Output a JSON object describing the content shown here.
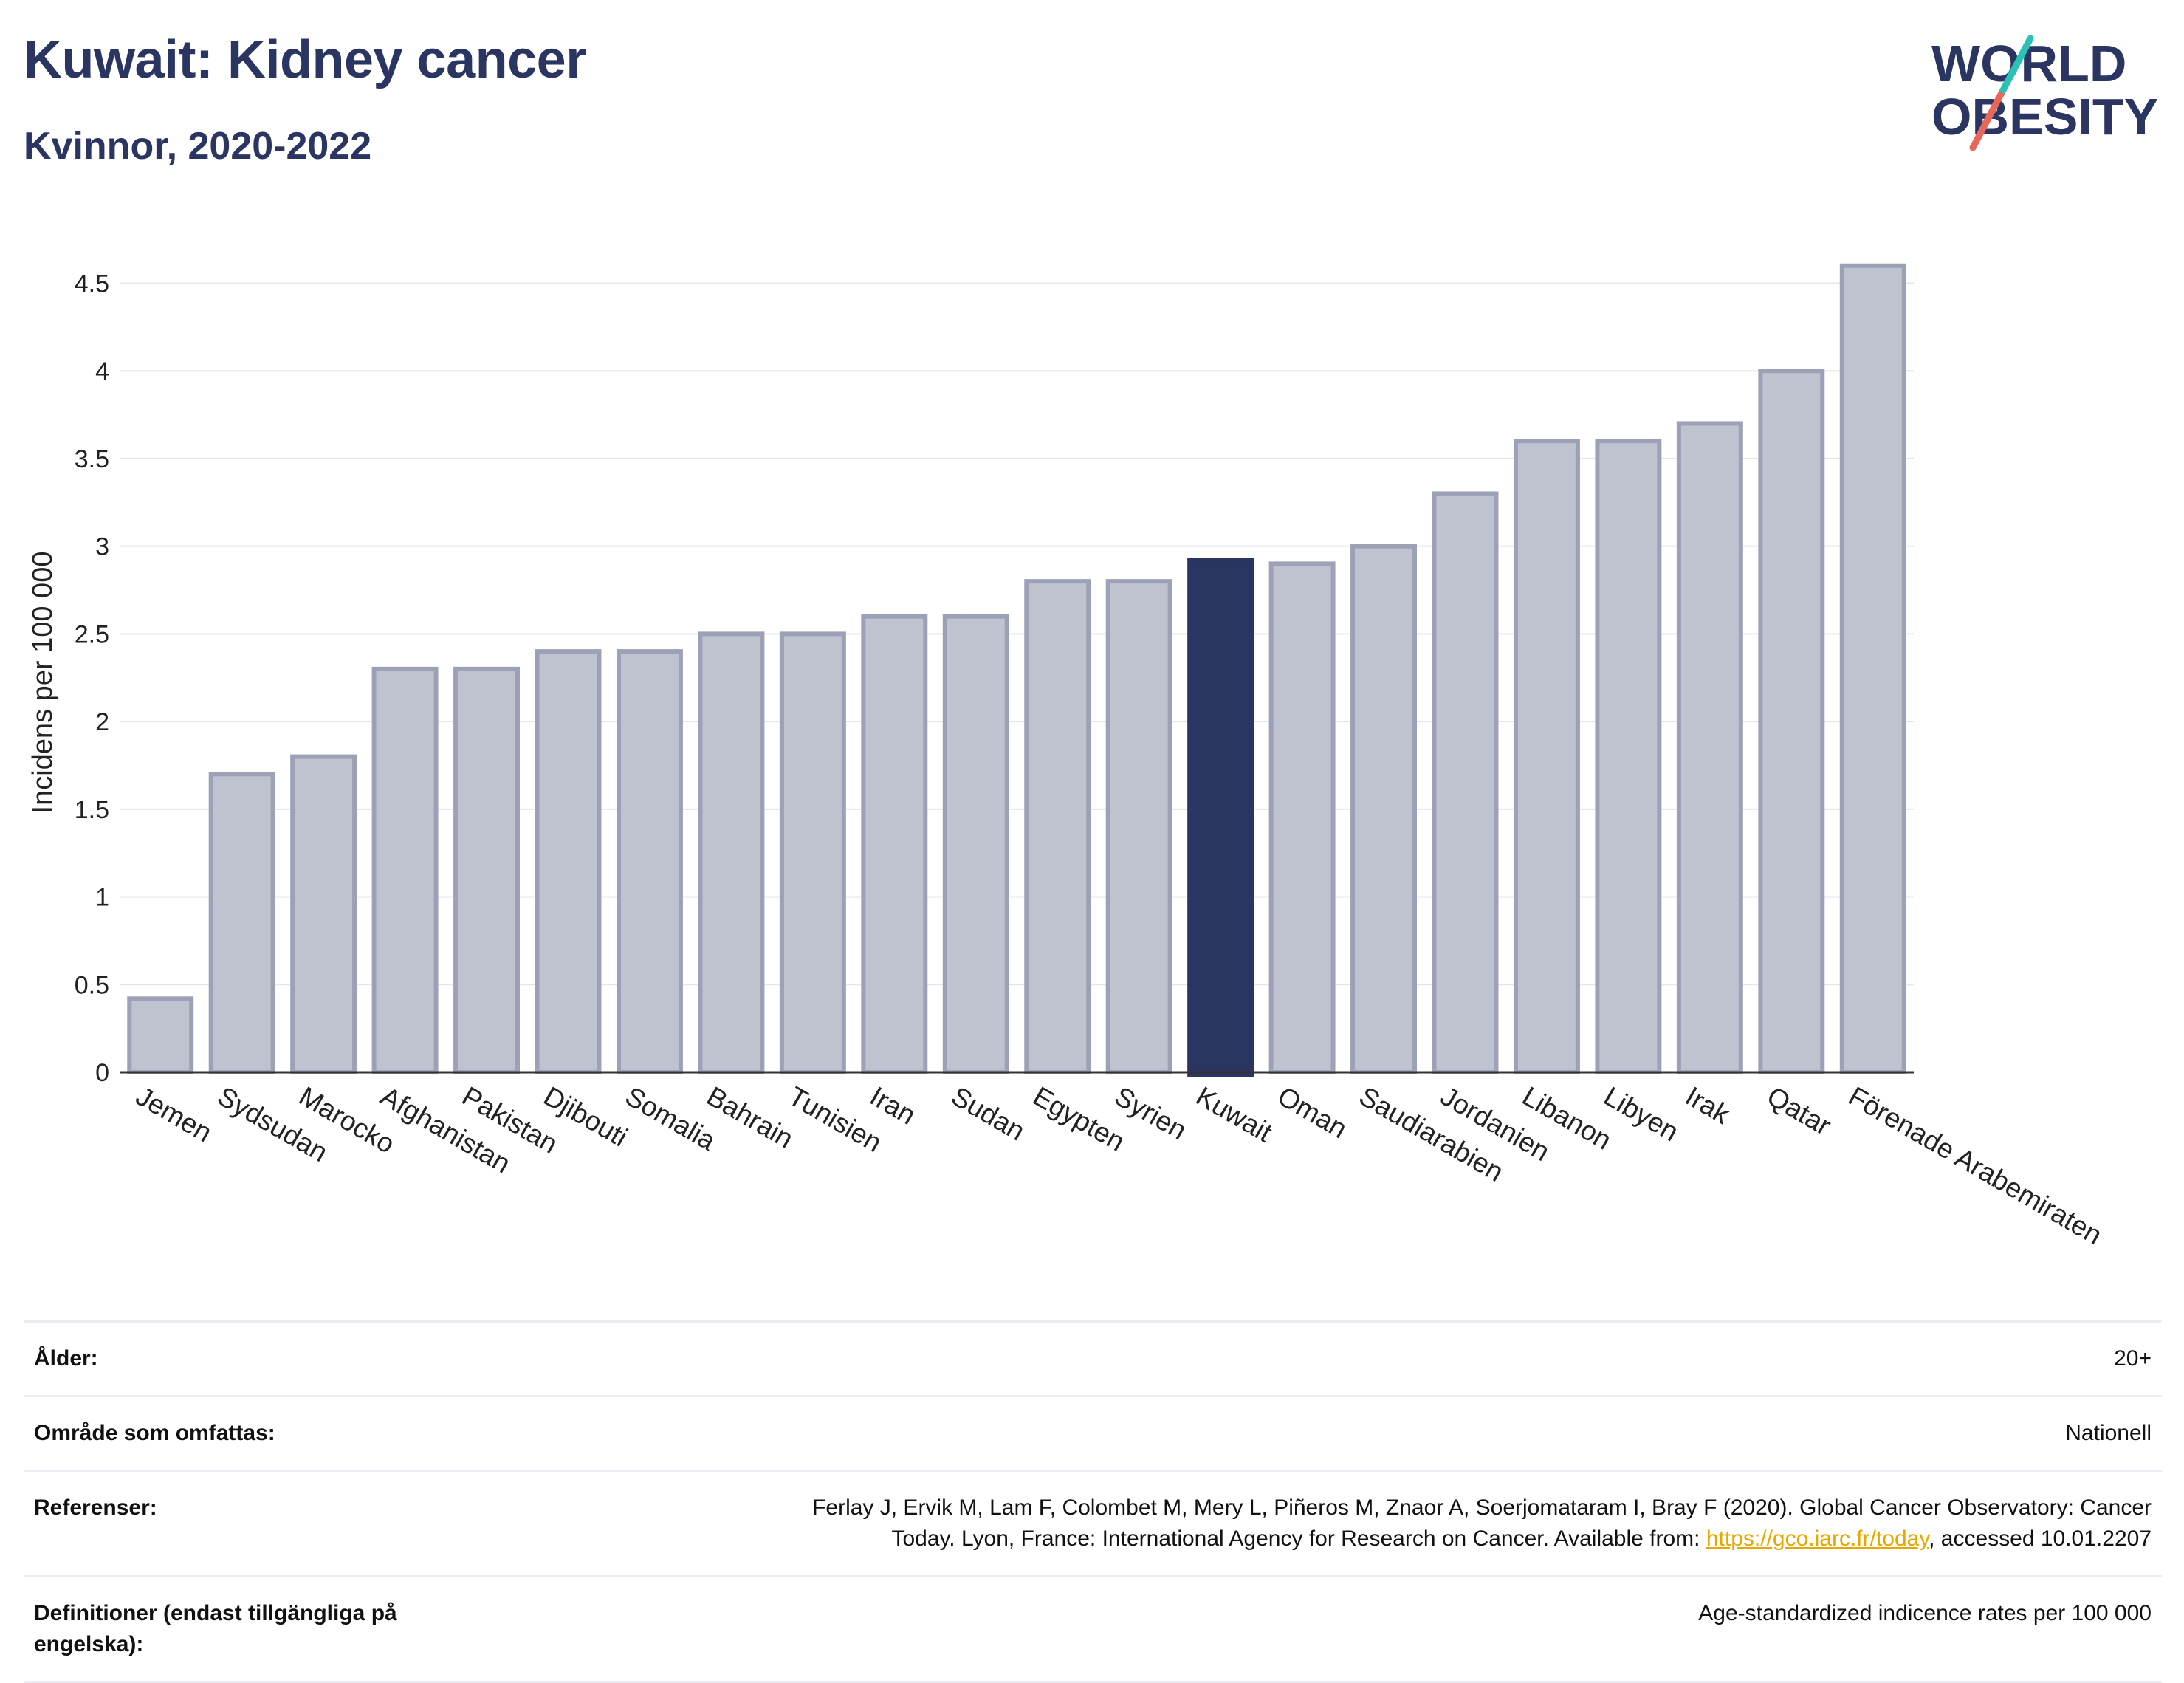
{
  "header": {
    "title": "Kuwait: Kidney cancer",
    "subtitle": "Kvinnor, 2020-2022"
  },
  "logo": {
    "line1": "WORLD",
    "line2": "OBESITY",
    "accent_colors": [
      "#2cc1b6",
      "#e8675a"
    ]
  },
  "chart_data": {
    "type": "bar",
    "categories": [
      "Jemen",
      "Sydsudan",
      "Marocko",
      "Afghanistan",
      "Pakistan",
      "Djibouti",
      "Somalia",
      "Bahrain",
      "Tunisien",
      "Iran",
      "Sudan",
      "Egypten",
      "Syrien",
      "Kuwait",
      "Oman",
      "Saudiarabien",
      "Jordanien",
      "Libanon",
      "Libyen",
      "Irak",
      "Qatar",
      "Förenade Arabemiraten"
    ],
    "values": [
      0.42,
      1.7,
      1.8,
      2.3,
      2.3,
      2.4,
      2.4,
      2.5,
      2.5,
      2.6,
      2.6,
      2.8,
      2.8,
      2.92,
      2.9,
      3.0,
      3.3,
      3.6,
      3.6,
      3.7,
      4.0,
      4.6
    ],
    "highlight": "Kuwait",
    "ylabel": "Incidens per 100 000",
    "ylim": [
      0,
      4.7
    ],
    "yticks": [
      0,
      0.5,
      1,
      1.5,
      2,
      2.5,
      3,
      3.5,
      4,
      4.5
    ],
    "ytick_labels": [
      "0",
      "0.5",
      "1",
      "1.5",
      "2",
      "2.5",
      "3",
      "3.5",
      "4",
      "4.5"
    ],
    "grid": true,
    "colors": {
      "bar": "#bfc2cf",
      "bar_border": "#9ca1b7",
      "highlight": "#2a3561"
    }
  },
  "meta": {
    "rows": [
      {
        "key": "Ålder:",
        "value": "20+"
      },
      {
        "key": "Område som omfattas:",
        "value": "Nationell"
      },
      {
        "key": "Referenser:",
        "value_line1": "Ferlay J, Ervik M, Lam F, Colombet M, Mery L, Piñeros M, Znaor A, Soerjomataram I, Bray F (2020). Global Cancer Observatory: Cancer",
        "value_line2_pre": "Today. Lyon, France: International Agency for Research on Cancer. Available from: ",
        "link": "https://gco.iarc.fr/today",
        "value_line2_post": ", accessed 10.01.2207"
      },
      {
        "key": "Definitioner (endast tillgängliga på engelska):",
        "value": "Age-standardized indicence rates per 100 000"
      }
    ]
  }
}
